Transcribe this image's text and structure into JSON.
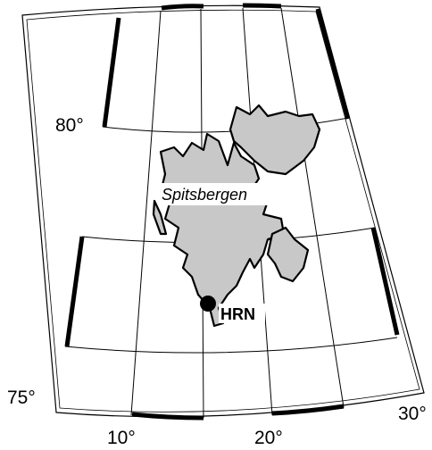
{
  "map": {
    "latitude_labels": [
      "80°",
      "75°"
    ],
    "longitude_labels": [
      "10°",
      "20°",
      "30°"
    ],
    "region_label": "Spitsbergen",
    "station_label": "HRN"
  }
}
